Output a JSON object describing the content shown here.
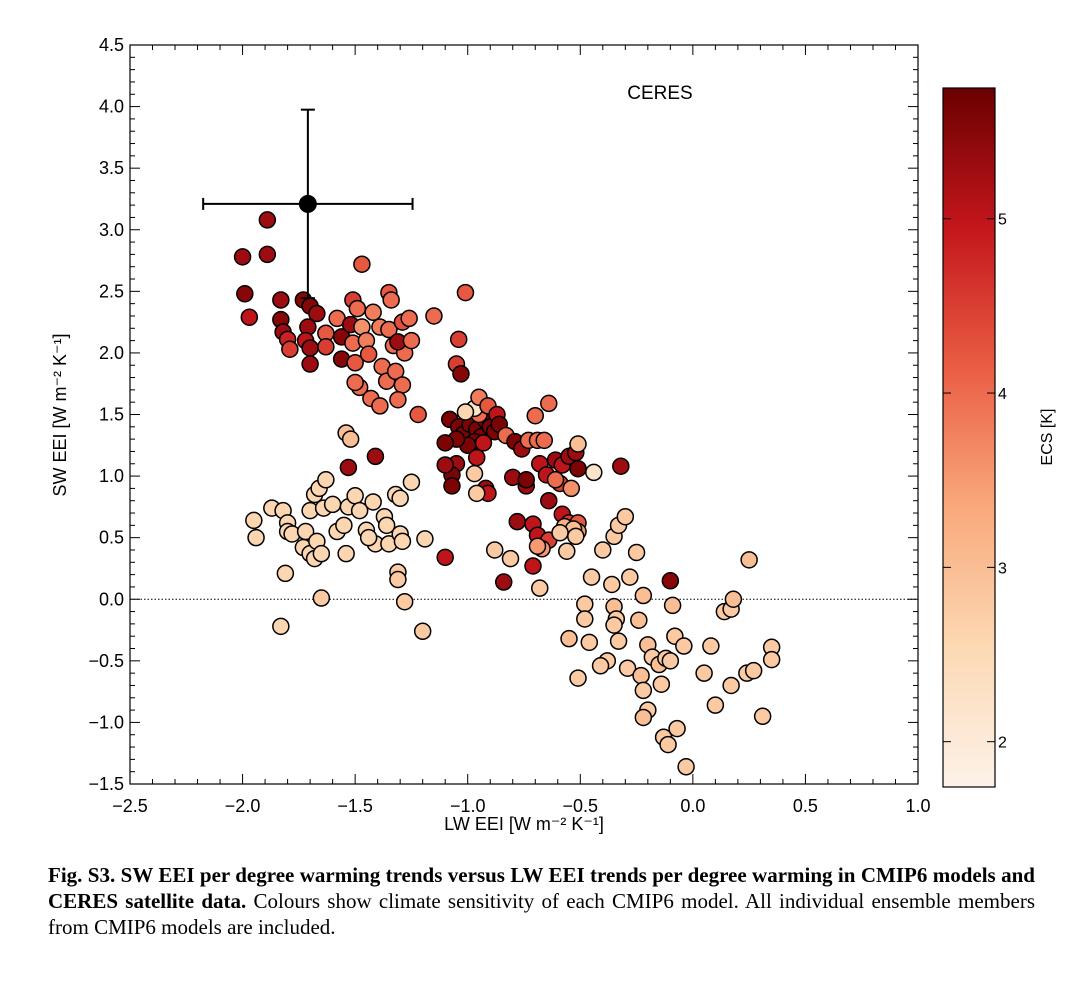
{
  "chart_data": {
    "type": "scatter",
    "xlabel": "LW EEI [W m⁻² K⁻¹]",
    "ylabel": "SW EEI [W m⁻² K⁻¹]",
    "xlim": [
      -2.5,
      1.0
    ],
    "xticks": [
      {
        "value": -2.5,
        "label": "−2.5"
      },
      {
        "value": -2.0,
        "label": "−2.0"
      },
      {
        "value": -1.5,
        "label": "−1.5"
      },
      {
        "value": -1.0,
        "label": "−1.0"
      },
      {
        "value": -0.5,
        "label": "−0.5"
      },
      {
        "value": 0,
        "label": "0.0"
      },
      0.5,
      {
        "value": 1,
        "label": "1.0"
      }
    ],
    "ylim": [
      -1.5,
      4.5
    ],
    "yticks": [
      {
        "value": -1.5,
        "label": "−1.5"
      },
      {
        "value": -1,
        "label": "−1.0"
      },
      {
        "value": -0.5,
        "label": "−0.5"
      },
      {
        "value": 0,
        "label": "0.0"
      },
      0.5,
      {
        "value": 1,
        "label": "1.0"
      },
      1.5,
      {
        "value": 2,
        "label": "2.0"
      },
      2.5,
      {
        "value": 3,
        "label": "3.0"
      },
      3.5,
      {
        "value": 4,
        "label": "4.0"
      },
      4.5
    ],
    "reference_line": 0,
    "annotation": "CERES",
    "observation": {
      "x": -1.71,
      "y": 3.21,
      "xerr": 0.465,
      "yerr": 0.765,
      "color": "#000000"
    },
    "colorbar": {
      "label": "ECS [K]",
      "clim": [
        1.74,
        5.75
      ],
      "ticks": [
        2,
        3,
        4,
        5
      ],
      "colormap": [
        "#fdf2e9",
        "#fcd9b4",
        "#f9a97c",
        "#ea5d44",
        "#c4161c",
        "#6b0000"
      ]
    },
    "x": [
      -2.0,
      -1.89,
      -1.89,
      -1.99,
      -1.97,
      -1.83,
      -1.83,
      -1.82,
      -1.8,
      -1.79,
      -1.73,
      -1.7,
      -1.67,
      -1.71,
      -1.72,
      -1.7,
      -1.7,
      -1.63,
      -1.63,
      -1.58,
      -1.56,
      -1.56,
      -1.52,
      -1.51,
      -1.49,
      -1.47,
      -1.51,
      -1.5,
      -1.47,
      -1.45,
      -1.42,
      -1.39,
      -1.35,
      -1.33,
      -1.35,
      -1.34,
      -1.29,
      -1.26,
      -1.28,
      -1.31,
      -1.25,
      -1.15,
      -1.44,
      -1.38,
      -1.36,
      -1.32,
      -1.29,
      -1.48,
      -1.5,
      -1.43,
      -1.39,
      -1.31,
      -1.22,
      -1.01,
      -1.04,
      -1.05,
      -1.03,
      -1.41,
      -1.53,
      -1.1,
      -1.08,
      -1.04,
      -1.02,
      -0.99,
      -0.96,
      -0.94,
      -0.92,
      -0.9,
      -0.88,
      -0.97,
      -1.0,
      -1.05,
      -1.1,
      -0.95,
      -0.97,
      -1.01,
      -0.95,
      -0.91,
      -0.87,
      -0.86,
      -0.83,
      -0.79,
      -0.76,
      -0.73,
      -0.69,
      -0.66,
      -0.7,
      -0.64,
      -0.93,
      -0.96,
      -1.05,
      -1.07,
      -1.1,
      -1.07,
      -0.97,
      -0.92,
      -0.91,
      -0.96,
      -0.8,
      -0.74,
      -0.74,
      -0.68,
      -0.65,
      -0.61,
      -0.58,
      -0.59,
      -0.61,
      -0.55,
      -0.52,
      -0.51,
      -0.51,
      -0.44,
      -0.32,
      -0.64,
      -0.58,
      -0.55,
      -0.51,
      -0.54,
      -0.78,
      -0.71,
      -0.69,
      -0.64,
      -0.67,
      -0.57,
      -0.51,
      -0.53,
      -0.84,
      -0.71,
      -0.69,
      -0.1,
      -1.95,
      -1.94,
      -1.87,
      -1.82,
      -1.8,
      -1.8,
      -1.78,
      -1.81,
      -1.83,
      -1.73,
      -1.72,
      -1.7,
      -1.7,
      -1.68,
      -1.67,
      -1.68,
      -1.66,
      -1.63,
      -1.64,
      -1.6,
      -1.58,
      -1.55,
      -1.53,
      -1.5,
      -1.48,
      -1.45,
      -1.42,
      -1.41,
      -1.37,
      -1.36,
      -1.35,
      -1.32,
      -1.3,
      -1.3,
      -1.29,
      -1.25,
      -1.31,
      -1.31,
      -1.28,
      -1.65,
      -1.2,
      -1.54,
      -1.52,
      -1.54,
      -1.65,
      -1.19,
      -1.44,
      -0.88,
      -0.81,
      -0.68,
      -0.59,
      -0.56,
      -0.48,
      -0.48,
      -0.45,
      -0.52,
      -0.4,
      -0.35,
      -0.33,
      -0.3,
      -0.36,
      -0.28,
      -0.25,
      -0.22,
      -0.24,
      -0.35,
      -0.34,
      -0.35,
      -0.46,
      -0.55,
      -0.51,
      -0.38,
      -0.33,
      -0.29,
      -0.23,
      -0.22,
      -0.2,
      -0.18,
      -0.15,
      -0.12,
      -0.08,
      -0.1,
      -0.14,
      -0.09,
      -0.2,
      -0.22,
      -0.13,
      -0.11,
      -0.07,
      -0.03,
      -0.04,
      0.05,
      0.1,
      0.08,
      0.14,
      0.17,
      0.18,
      0.17,
      0.24,
      0.27,
      0.25,
      0.31,
      0.35,
      0.35,
      -0.41
    ],
    "y": [
      2.78,
      3.08,
      2.8,
      2.48,
      2.29,
      2.43,
      2.27,
      2.17,
      2.11,
      2.03,
      2.43,
      2.38,
      2.32,
      2.21,
      2.1,
      2.04,
      1.91,
      2.16,
      2.05,
      2.28,
      2.13,
      1.95,
      2.23,
      2.43,
      2.36,
      2.72,
      2.08,
      1.92,
      2.21,
      2.1,
      2.33,
      2.21,
      2.19,
      2.06,
      2.49,
      2.43,
      2.25,
      2.28,
      2.0,
      2.09,
      2.1,
      2.3,
      1.99,
      1.89,
      1.77,
      1.85,
      1.74,
      1.72,
      1.76,
      1.63,
      1.57,
      1.62,
      1.5,
      2.49,
      2.11,
      1.91,
      1.83,
      1.16,
      1.07,
      0.34,
      1.46,
      1.4,
      1.34,
      1.42,
      1.38,
      1.32,
      1.45,
      1.4,
      1.36,
      1.28,
      1.25,
      1.3,
      1.27,
      1.5,
      1.55,
      1.52,
      1.64,
      1.57,
      1.5,
      1.42,
      1.33,
      1.28,
      1.22,
      1.29,
      1.29,
      1.29,
      1.49,
      1.59,
      1.27,
      1.15,
      1.1,
      1.01,
      1.09,
      0.92,
      1.02,
      0.9,
      0.86,
      0.86,
      0.99,
      0.92,
      0.97,
      1.1,
      1.01,
      1.13,
      1.09,
      0.94,
      0.97,
      1.16,
      1.19,
      1.26,
      1.06,
      1.03,
      1.08,
      0.8,
      0.69,
      0.62,
      0.62,
      0.9,
      0.63,
      0.61,
      0.52,
      0.48,
      0.41,
      0.59,
      0.55,
      0.57,
      0.14,
      0.27,
      0.43,
      0.15,
      0.64,
      0.5,
      0.74,
      0.72,
      0.62,
      0.55,
      0.53,
      0.21,
      -0.22,
      0.42,
      0.55,
      0.72,
      0.37,
      0.33,
      0.47,
      0.85,
      0.9,
      0.97,
      0.74,
      0.77,
      0.55,
      0.6,
      0.75,
      0.84,
      0.72,
      0.56,
      0.79,
      0.45,
      0.67,
      0.6,
      0.45,
      0.85,
      0.82,
      0.53,
      0.47,
      0.95,
      0.22,
      0.16,
      -0.02,
      0.01,
      -0.26,
      1.35,
      1.3,
      0.37,
      0.37,
      0.49,
      0.5,
      0.4,
      0.33,
      0.09,
      0.54,
      0.39,
      -0.04,
      -0.16,
      0.18,
      0.51,
      0.4,
      0.51,
      0.6,
      0.67,
      0.12,
      0.18,
      0.38,
      0.03,
      -0.17,
      -0.06,
      -0.16,
      -0.21,
      -0.35,
      -0.32,
      -0.64,
      -0.5,
      -0.34,
      -0.56,
      -0.62,
      -0.74,
      -0.37,
      -0.47,
      -0.53,
      -0.48,
      -0.3,
      -0.5,
      -0.69,
      -0.05,
      -0.9,
      -0.96,
      -1.12,
      -1.18,
      -1.05,
      -1.36,
      -0.38,
      -0.6,
      -0.86,
      -0.38,
      -0.1,
      -0.08,
      0.0,
      -0.7,
      -0.6,
      -0.58,
      0.32,
      -0.95,
      -0.39,
      -0.49,
      -0.54
    ],
    "color_values": [
      5.3,
      5.3,
      5.3,
      5.5,
      5.0,
      5.3,
      5.5,
      5.3,
      4.8,
      4.5,
      5.5,
      5.5,
      5.3,
      5.3,
      5.0,
      5.3,
      5.3,
      4.2,
      4.5,
      4.0,
      5.5,
      5.5,
      5.3,
      4.5,
      4.0,
      4.2,
      4.0,
      4.2,
      3.6,
      3.8,
      3.8,
      3.8,
      4.0,
      4.0,
      4.2,
      4.0,
      4.3,
      4.0,
      4.0,
      5.3,
      4.0,
      4.0,
      4.2,
      4.0,
      4.0,
      4.0,
      4.0,
      4.0,
      4.0,
      4.0,
      4.0,
      4.0,
      4.2,
      4.2,
      4.5,
      4.5,
      5.5,
      5.3,
      5.3,
      5.0,
      5.6,
      5.6,
      5.6,
      5.6,
      5.6,
      5.6,
      5.6,
      5.6,
      5.6,
      5.6,
      5.6,
      5.6,
      5.6,
      4.0,
      2.2,
      2.6,
      3.8,
      4.2,
      5.0,
      5.6,
      4.0,
      5.6,
      5.3,
      4.0,
      4.0,
      4.0,
      4.0,
      4.0,
      5.0,
      5.0,
      5.3,
      5.6,
      5.3,
      5.6,
      2.8,
      5.3,
      5.0,
      2.8,
      5.3,
      5.3,
      5.6,
      5.0,
      5.0,
      5.3,
      5.0,
      4.5,
      4.0,
      5.3,
      5.3,
      3.0,
      5.6,
      2.2,
      5.3,
      5.3,
      5.0,
      4.5,
      4.2,
      3.6,
      5.3,
      5.0,
      5.0,
      4.5,
      3.5,
      3.2,
      3.5,
      3.0,
      5.3,
      5.0,
      3.5,
      5.5,
      2.6,
      2.6,
      2.6,
      2.6,
      2.6,
      2.6,
      2.6,
      2.6,
      2.6,
      2.6,
      2.6,
      2.6,
      2.6,
      2.6,
      2.6,
      2.6,
      2.6,
      2.6,
      2.6,
      2.6,
      2.6,
      2.6,
      2.6,
      2.6,
      2.6,
      2.6,
      2.6,
      2.6,
      2.6,
      2.6,
      2.6,
      2.6,
      2.6,
      2.6,
      2.6,
      2.6,
      2.8,
      2.8,
      2.8,
      2.8,
      2.8,
      3.0,
      3.0,
      2.6,
      2.6,
      2.6,
      2.6,
      2.8,
      2.8,
      2.8,
      2.8,
      2.8,
      2.8,
      2.8,
      2.8,
      2.8,
      2.8,
      2.8,
      2.8,
      2.8,
      2.8,
      2.8,
      2.8,
      3.0,
      3.0,
      3.0,
      2.8,
      2.8,
      2.8,
      3.0,
      2.8,
      2.8,
      2.8,
      2.8,
      3.0,
      2.8,
      3.0,
      2.8,
      3.0,
      2.8,
      2.8,
      2.8,
      2.8,
      3.0,
      2.8,
      3.0,
      2.8,
      2.8,
      2.8,
      2.8,
      2.8,
      2.8,
      2.8,
      2.8,
      2.8,
      2.8,
      3.0,
      2.8,
      2.8,
      2.8,
      3.0,
      2.8,
      2.8,
      2.8,
      2.8
    ]
  },
  "caption": {
    "bold": "Fig. S3. SW EEI per degree warming trends versus LW EEI trends per degree warming in CMIP6 models and CERES satellite data.",
    "text": " Colours show climate sensitivity of each CMIP6 model. All individual ensemble members from CMIP6 models are included."
  }
}
